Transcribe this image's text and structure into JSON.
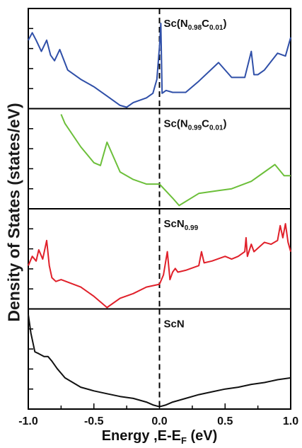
{
  "figure": {
    "ylabel": "Density of States (states/eV)",
    "xlabel": "Energy ,E-E",
    "xlabel_sub": "F",
    "xlabel_unit": " (eV)",
    "xticks": [
      "-1.0",
      "-0.5",
      "0.0",
      "0.5",
      "1.0"
    ]
  },
  "chart_data": [
    {
      "type": "line",
      "panel": 1,
      "label": {
        "main": "Sc(N",
        "sub1": "0.98",
        "mid": "C",
        "sub2": "0.01",
        "end": ")"
      },
      "color": "#2f4fa8",
      "xlim": [
        -1.0,
        1.0
      ],
      "ylim": [
        0,
        1
      ],
      "fermi_level_line": 0.0,
      "x": [
        -1.0,
        -0.97,
        -0.94,
        -0.9,
        -0.86,
        -0.83,
        -0.8,
        -0.76,
        -0.7,
        -0.6,
        -0.5,
        -0.4,
        -0.3,
        -0.25,
        -0.2,
        -0.1,
        -0.05,
        -0.02,
        0.0,
        0.01,
        0.02,
        0.05,
        0.1,
        0.2,
        0.3,
        0.45,
        0.55,
        0.65,
        0.7,
        0.72,
        0.75,
        0.8,
        0.9,
        0.96,
        1.0
      ],
      "y": [
        0.72,
        0.8,
        0.72,
        0.6,
        0.72,
        0.56,
        0.5,
        0.62,
        0.4,
        0.3,
        0.22,
        0.12,
        0.02,
        0.0,
        0.05,
        0.1,
        0.15,
        0.3,
        0.65,
        0.9,
        0.15,
        0.18,
        0.16,
        0.16,
        0.28,
        0.48,
        0.32,
        0.32,
        0.6,
        0.35,
        0.35,
        0.4,
        0.58,
        0.55,
        0.75
      ]
    },
    {
      "type": "line",
      "panel": 2,
      "label": {
        "main": "Sc(N",
        "sub1": "0.99",
        "mid": "C",
        "sub2": "0.01",
        "end": ")"
      },
      "color": "#6cbf3a",
      "xlim": [
        -1.0,
        1.0
      ],
      "ylim": [
        0,
        1
      ],
      "fermi_level_line": 0.0,
      "x": [
        -0.75,
        -0.72,
        -0.6,
        -0.5,
        -0.45,
        -0.4,
        -0.3,
        -0.2,
        -0.1,
        0.0,
        0.1,
        0.15,
        0.3,
        0.45,
        0.55,
        0.7,
        0.8,
        0.88,
        0.95,
        1.0
      ],
      "y": [
        1.0,
        0.9,
        0.65,
        0.48,
        0.45,
        0.7,
        0.38,
        0.3,
        0.25,
        0.25,
        0.1,
        0.02,
        0.15,
        0.18,
        0.2,
        0.28,
        0.38,
        0.46,
        0.34,
        0.34
      ]
    },
    {
      "type": "line",
      "panel": 3,
      "label": {
        "main": "ScN",
        "sub1": "0.99",
        "mid": "",
        "sub2": "",
        "end": ""
      },
      "color": "#e0202a",
      "xlim": [
        -1.0,
        1.0
      ],
      "ylim": [
        0,
        1
      ],
      "fermi_level_line": 0.0,
      "x": [
        -1.0,
        -0.97,
        -0.94,
        -0.92,
        -0.89,
        -0.86,
        -0.84,
        -0.82,
        -0.79,
        -0.75,
        -0.6,
        -0.5,
        -0.4,
        -0.3,
        -0.2,
        -0.1,
        0.0,
        0.03,
        0.06,
        0.08,
        0.1,
        0.12,
        0.14,
        0.2,
        0.3,
        0.32,
        0.34,
        0.4,
        0.5,
        0.55,
        0.6,
        0.65,
        0.66,
        0.67,
        0.7,
        0.72,
        0.76,
        0.8,
        0.85,
        0.9,
        0.92,
        0.94,
        0.96,
        0.98,
        1.0
      ],
      "y": [
        0.45,
        0.55,
        0.5,
        0.62,
        0.52,
        0.72,
        0.45,
        0.32,
        0.28,
        0.3,
        0.22,
        0.12,
        0.0,
        0.1,
        0.15,
        0.22,
        0.25,
        0.35,
        0.6,
        0.3,
        0.38,
        0.42,
        0.38,
        0.4,
        0.45,
        0.6,
        0.48,
        0.5,
        0.55,
        0.52,
        0.55,
        0.6,
        0.75,
        0.55,
        0.68,
        0.6,
        0.65,
        0.7,
        0.68,
        0.72,
        0.88,
        0.75,
        0.9,
        0.7,
        0.6
      ]
    },
    {
      "type": "line",
      "panel": 4,
      "label": {
        "main": "ScN",
        "sub1": "",
        "mid": "",
        "sub2": "",
        "end": ""
      },
      "color": "#111111",
      "xlim": [
        -1.0,
        1.0
      ],
      "ylim": [
        0,
        1
      ],
      "fermi_level_line": 0.0,
      "x": [
        -1.0,
        -0.98,
        -0.95,
        -0.92,
        -0.88,
        -0.85,
        -0.82,
        -0.78,
        -0.72,
        -0.6,
        -0.5,
        -0.4,
        -0.3,
        -0.2,
        -0.1,
        -0.05,
        0.0,
        0.05,
        0.1,
        0.2,
        0.3,
        0.4,
        0.5,
        0.6,
        0.7,
        0.8,
        0.9,
        1.0
      ],
      "y": [
        1.0,
        0.8,
        0.6,
        0.58,
        0.55,
        0.55,
        0.5,
        0.42,
        0.32,
        0.22,
        0.18,
        0.15,
        0.12,
        0.1,
        0.06,
        0.03,
        0.01,
        0.03,
        0.06,
        0.1,
        0.14,
        0.17,
        0.2,
        0.22,
        0.25,
        0.27,
        0.3,
        0.32
      ]
    }
  ]
}
